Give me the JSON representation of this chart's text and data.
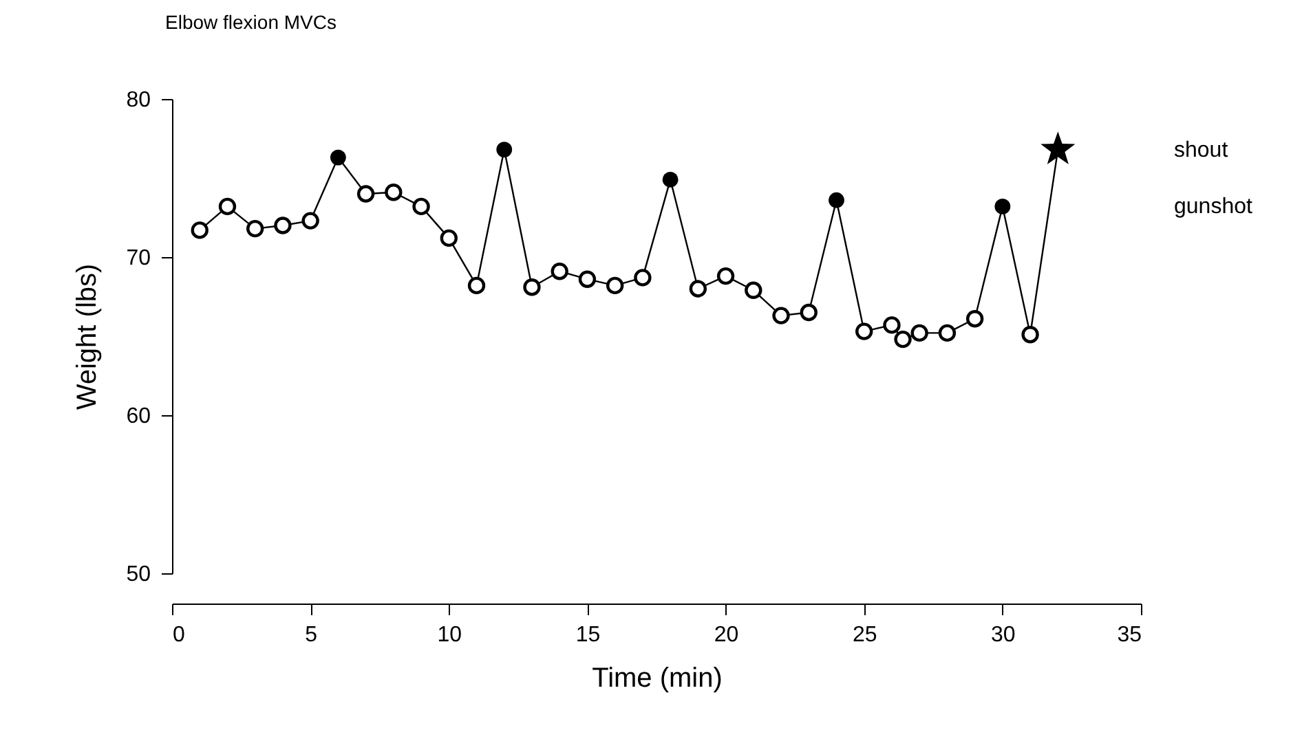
{
  "chart_data": {
    "type": "line",
    "title": "Elbow flexion MVCs",
    "xlabel": "Time (min)",
    "ylabel": "Weight (lbs)",
    "xlim": [
      0,
      35
    ],
    "xticks": [
      0,
      5,
      10,
      15,
      20,
      25,
      30,
      35
    ],
    "ylim": [
      50,
      80
    ],
    "yticks": [
      50,
      60,
      70,
      80
    ],
    "grid": false,
    "line_style": "solid",
    "series": [
      {
        "type": "line",
        "marker": "circle",
        "color": "#000000",
        "x": [
          1,
          2,
          3,
          4,
          5,
          6,
          7,
          8,
          9,
          10,
          11,
          12,
          13,
          14,
          15,
          16,
          17,
          18,
          19,
          20,
          21,
          22,
          23,
          24,
          25,
          26,
          26.4,
          27,
          28,
          29,
          30,
          31,
          32
        ],
        "values": [
          71.7,
          73.2,
          71.8,
          72.0,
          72.3,
          76.3,
          74.0,
          74.1,
          73.2,
          71.2,
          68.2,
          76.8,
          68.1,
          69.1,
          68.6,
          68.2,
          68.7,
          74.9,
          68.0,
          68.8,
          67.9,
          66.3,
          66.5,
          73.6,
          65.3,
          65.7,
          64.8,
          65.2,
          65.2,
          66.1,
          73.2,
          65.1,
          76.8
        ]
      },
      {
        "type": "scatter",
        "name": "shout",
        "marker": "star",
        "color": "#000000",
        "x": [
          32
        ],
        "values": [
          76.8
        ]
      },
      {
        "type": "scatter",
        "name": "gunshot",
        "marker": "circle",
        "color": "#000000",
        "x": [
          6,
          12,
          18,
          24,
          30
        ],
        "values": [
          76.3,
          76.8,
          74.9,
          73.6,
          73.2
        ]
      }
    ]
  }
}
